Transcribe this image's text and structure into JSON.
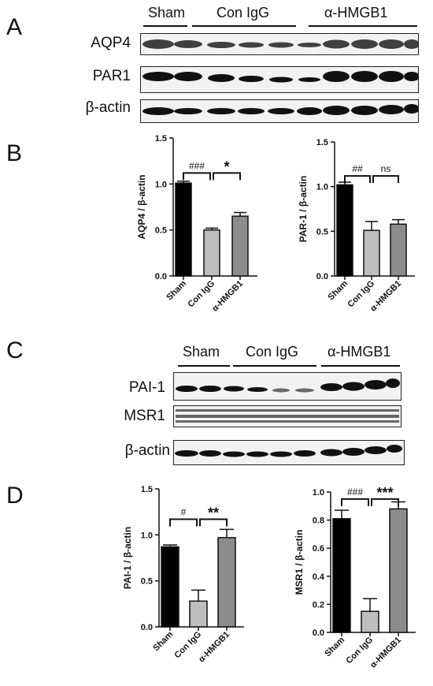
{
  "panels": {
    "A": "A",
    "B": "B",
    "C": "C",
    "D": "D"
  },
  "blot_A": {
    "groups": [
      "Sham",
      "Con IgG",
      "α-HMGB1"
    ],
    "rows": [
      "AQP4",
      "PAR1",
      "β-actin"
    ]
  },
  "blot_C": {
    "groups": [
      "Sham",
      "Con IgG",
      "α-HMGB1"
    ],
    "rows": [
      "PAI-1",
      "MSR1",
      "β-actin"
    ]
  },
  "colors": {
    "sham": "#000000",
    "con_igg": "#bdbdbd",
    "hmgb1": "#8c8c8c"
  },
  "chart_data": [
    {
      "id": "aqp4",
      "type": "bar",
      "categories": [
        "Sham",
        "Con IgG",
        "α-HMGB1"
      ],
      "values": [
        1.01,
        0.5,
        0.65
      ],
      "errors": [
        0.02,
        0.02,
        0.04
      ],
      "ylabel": "AQP4 / β-actin",
      "ylim": [
        0,
        1.5
      ],
      "yticks": [
        "0.0",
        "0.5",
        "1.0",
        "1.5"
      ],
      "tickvals": [
        0,
        0.5,
        1.0,
        1.5
      ],
      "annotations": [
        {
          "text": "###",
          "from": 0,
          "to": 1,
          "level": 1.12
        },
        {
          "text": "*",
          "from": 1,
          "to": 2,
          "level": 1.12
        }
      ]
    },
    {
      "id": "par1",
      "type": "bar",
      "categories": [
        "Sham",
        "Con IgG",
        "α-HMGB1"
      ],
      "values": [
        1.02,
        0.51,
        0.58
      ],
      "errors": [
        0.03,
        0.1,
        0.05
      ],
      "ylabel": "PAR-1 / β-actin",
      "ylim": [
        0,
        1.5
      ],
      "yticks": [
        "0.0",
        "0.5",
        "1.0",
        "1.5"
      ],
      "tickvals": [
        0,
        0.5,
        1.0,
        1.5
      ],
      "annotations": [
        {
          "text": "##",
          "from": 0,
          "to": 1,
          "level": 1.12
        },
        {
          "text": "ns",
          "from": 1,
          "to": 2,
          "level": 1.12
        }
      ]
    },
    {
      "id": "pai1",
      "type": "bar",
      "categories": [
        "Sham",
        "Con IgG",
        "α-HMGB1"
      ],
      "values": [
        0.87,
        0.28,
        0.97
      ],
      "errors": [
        0.02,
        0.12,
        0.09
      ],
      "ylabel": "PAI-1 / β-actin",
      "ylim": [
        0,
        1.5
      ],
      "yticks": [
        "0.0",
        "0.5",
        "1.0",
        "1.5"
      ],
      "tickvals": [
        0,
        0.5,
        1.0,
        1.5
      ],
      "annotations": [
        {
          "text": "#",
          "from": 0,
          "to": 1,
          "level": 1.17
        },
        {
          "text": "**",
          "from": 1,
          "to": 2,
          "level": 1.17
        }
      ]
    },
    {
      "id": "msr1",
      "type": "bar",
      "categories": [
        "Sham",
        "Con IgG",
        "α-HMGB1"
      ],
      "values": [
        0.81,
        0.15,
        0.88
      ],
      "errors": [
        0.06,
        0.09,
        0.05
      ],
      "ylabel": "MSR1 / β-actin",
      "ylim": [
        0,
        1.0
      ],
      "yticks": [
        "0.0",
        "0.2",
        "0.4",
        "0.6",
        "0.8",
        "1.0"
      ],
      "tickvals": [
        0,
        0.2,
        0.4,
        0.6,
        0.8,
        1.0
      ],
      "annotations": [
        {
          "text": "###",
          "from": 0,
          "to": 1,
          "level": 0.95
        },
        {
          "text": "***",
          "from": 1,
          "to": 2,
          "level": 0.95
        }
      ]
    }
  ]
}
